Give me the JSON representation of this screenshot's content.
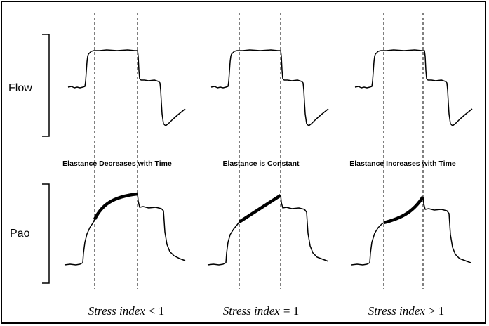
{
  "rows": {
    "flow": {
      "label": "Flow"
    },
    "pao": {
      "label": "Pao"
    }
  },
  "panels": [
    {
      "caption": "Elastance Decreases with Time",
      "stress_index": {
        "prefix": "Stress index",
        "relation": "< 1"
      }
    },
    {
      "caption": "Elastance is Constant",
      "stress_index": {
        "prefix": "Stress index",
        "relation": "= 1"
      }
    },
    {
      "caption": "Elastance Increases with Time",
      "stress_index": {
        "prefix": "Stress index",
        "relation": "> 1"
      }
    }
  ],
  "colors": {
    "line": "#000000",
    "frame": "#000000",
    "background": "#ffffff"
  }
}
